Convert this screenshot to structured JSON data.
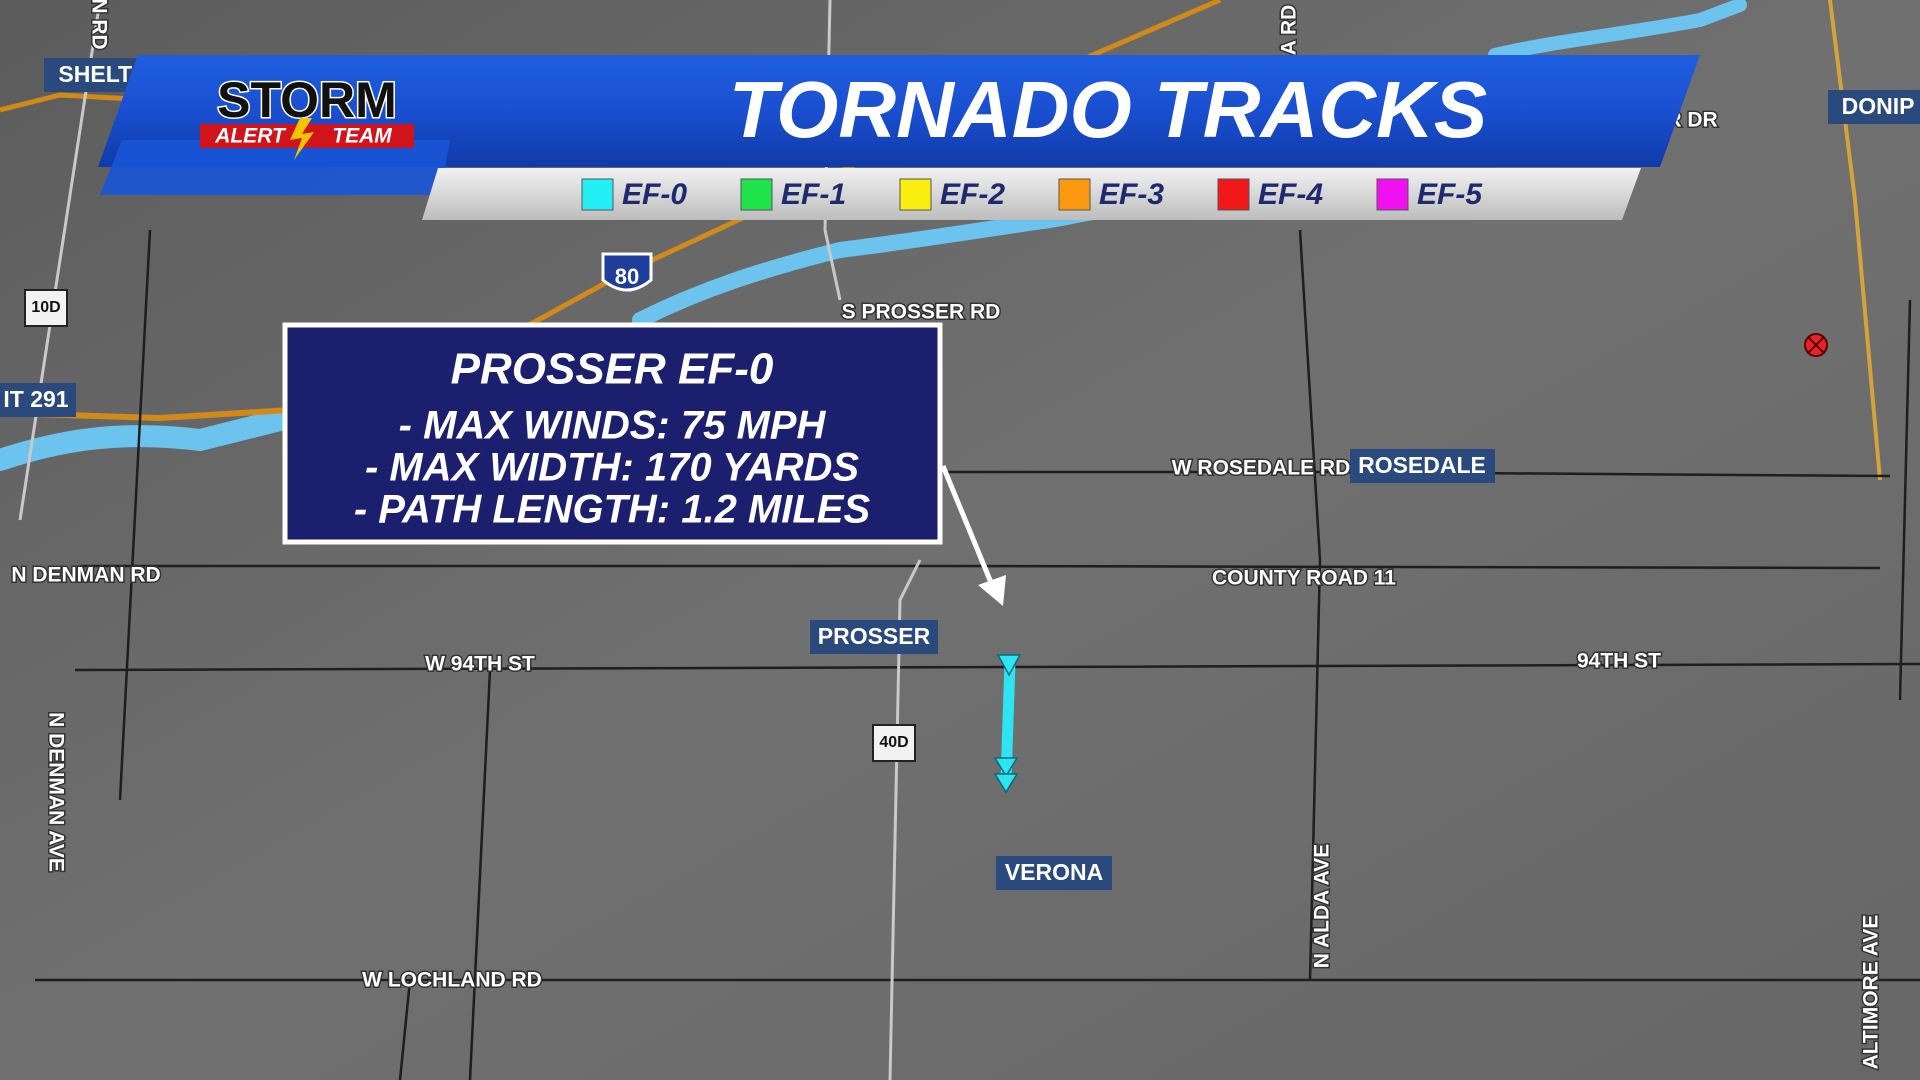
{
  "header": {
    "title": "TORNADO TRACKS",
    "logo": {
      "word": "STORM",
      "line1": "ALERT",
      "line2": "TEAM"
    }
  },
  "legend": {
    "items": [
      {
        "label": "EF-0",
        "color": "#22f0f5"
      },
      {
        "label": "EF-1",
        "color": "#1ee34a"
      },
      {
        "label": "EF-2",
        "color": "#f8ee10"
      },
      {
        "label": "EF-3",
        "color": "#fb9a10"
      },
      {
        "label": "EF-4",
        "color": "#f01818"
      },
      {
        "label": "EF-5",
        "color": "#f010f0"
      }
    ]
  },
  "info_box": {
    "title": "PROSSER EF-0",
    "lines": [
      "- MAX WINDS: 75 MPH",
      "- MAX WIDTH: 170 YARDS",
      "- PATH LENGTH: 1.2 MILES"
    ]
  },
  "towns": [
    "SHELTO",
    "DONIP",
    "ROSEDALE",
    "PROSSER",
    "VERONA",
    "IT 291"
  ],
  "roads": [
    "S PROSSER RD",
    "W ROSEDALE RD",
    "COUNTY ROAD 11",
    "N DENMAN RD",
    "W 94TH ST",
    "94TH ST",
    "W LOCHLAND RD",
    "N DENMAN AVE",
    "N ALDA AVE",
    "ALTIMORE AVE",
    "N RD",
    "A RD",
    "R DR"
  ],
  "shields": [
    "80",
    "10D",
    "40D"
  ]
}
